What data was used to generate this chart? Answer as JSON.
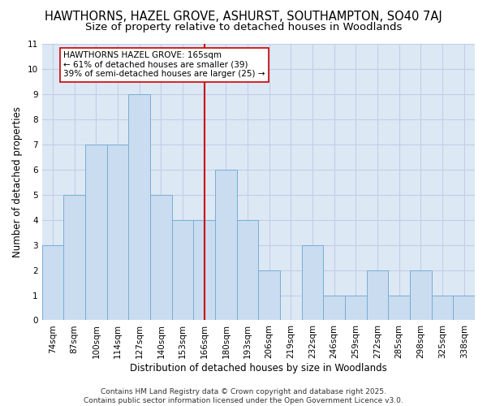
{
  "title1": "HAWTHORNS, HAZEL GROVE, ASHURST, SOUTHAMPTON, SO40 7AJ",
  "title2": "Size of property relative to detached houses in Woodlands",
  "xlabel": "Distribution of detached houses by size in Woodlands",
  "ylabel": "Number of detached properties",
  "categories": [
    "74sqm",
    "87sqm",
    "100sqm",
    "114sqm",
    "127sqm",
    "140sqm",
    "153sqm",
    "166sqm",
    "180sqm",
    "193sqm",
    "206sqm",
    "219sqm",
    "232sqm",
    "246sqm",
    "259sqm",
    "272sqm",
    "285sqm",
    "298sqm",
    "325sqm",
    "338sqm"
  ],
  "values": [
    3,
    5,
    7,
    7,
    9,
    5,
    4,
    4,
    6,
    4,
    2,
    0,
    3,
    1,
    1,
    2,
    1,
    2,
    1,
    1
  ],
  "bar_color": "#c9dcf0",
  "bar_edge_color": "#7aadd4",
  "grid_color": "#c0cfe8",
  "plot_bg_color": "#dde8f5",
  "fig_bg_color": "#ffffff",
  "vline_index": 7,
  "vline_color": "#cc0000",
  "annotation_text": "HAWTHORNS HAZEL GROVE: 165sqm\n← 61% of detached houses are smaller (39)\n39% of semi-detached houses are larger (25) →",
  "annotation_box_facecolor": "#ffffff",
  "annotation_box_edgecolor": "#cc0000",
  "ylim": [
    0,
    11
  ],
  "yticks": [
    0,
    1,
    2,
    3,
    4,
    5,
    6,
    7,
    8,
    9,
    10,
    11
  ],
  "title1_fontsize": 10.5,
  "title2_fontsize": 9.5,
  "axis_label_fontsize": 8.5,
  "tick_fontsize": 7.5,
  "annotation_fontsize": 7.5,
  "footnote_fontsize": 6.5,
  "footnote": "Contains HM Land Registry data © Crown copyright and database right 2025.\nContains public sector information licensed under the Open Government Licence v3.0."
}
